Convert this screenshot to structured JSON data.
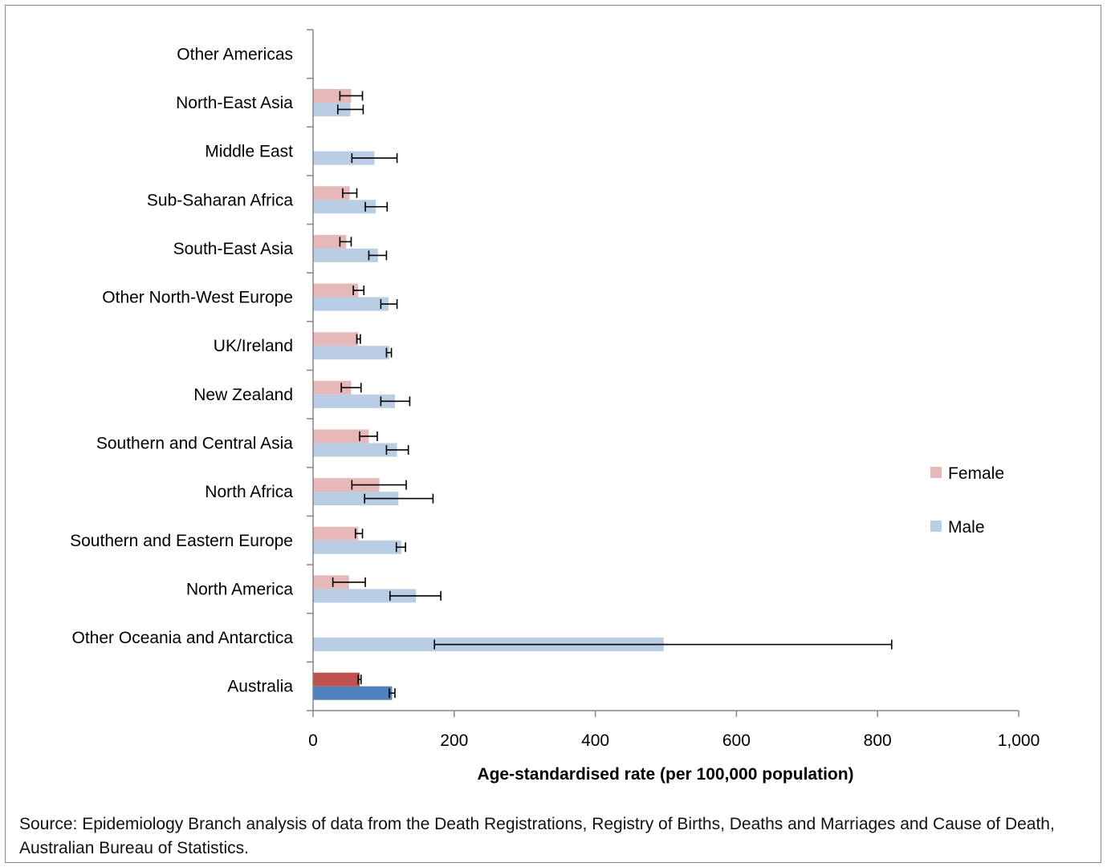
{
  "chart_data": {
    "type": "bar",
    "orientation": "horizontal",
    "xlabel": "Age-standardised rate (per 100,000 population)",
    "xlim": [
      0,
      1000
    ],
    "xticks": [
      0,
      200,
      400,
      600,
      800,
      1000
    ],
    "xtick_labels": [
      "0",
      "200",
      "400",
      "600",
      "800",
      "1,000"
    ],
    "grid": false,
    "legend_position": "right",
    "categories": [
      "Australia",
      "Other Oceania and Antarctica",
      "North America",
      "Southern and Eastern Europe",
      "North Africa",
      "Southern and Central Asia",
      "New Zealand",
      "UK/Ireland",
      "Other North-West Europe",
      "South-East Asia",
      "Sub-Saharan Africa",
      "Middle East",
      "North-East Asia",
      "Other Americas"
    ],
    "series": [
      {
        "name": "Female",
        "color": "#e6b9b8",
        "highlight_color": "#c0504d",
        "values": [
          66,
          0,
          51,
          64,
          94,
          79,
          54,
          64,
          64,
          47,
          52,
          0,
          54,
          0
        ],
        "error_low": [
          64,
          0,
          28,
          60,
          55,
          66,
          40,
          62,
          57,
          38,
          42,
          0,
          38,
          0
        ],
        "error_high": [
          68,
          0,
          74,
          70,
          132,
          91,
          68,
          67,
          72,
          54,
          62,
          0,
          70,
          0
        ]
      },
      {
        "name": "Male",
        "color": "#b9cde5",
        "highlight_color": "#4f81bd",
        "values": [
          112,
          497,
          146,
          125,
          121,
          119,
          116,
          108,
          107,
          92,
          89,
          87,
          53,
          0
        ],
        "error_low": [
          108,
          172,
          109,
          118,
          73,
          104,
          96,
          104,
          96,
          79,
          74,
          55,
          35,
          0
        ],
        "error_high": [
          116,
          820,
          181,
          131,
          170,
          135,
          137,
          111,
          119,
          104,
          105,
          119,
          71,
          0
        ]
      }
    ],
    "highlighted_category": "Australia"
  },
  "source_note": "Source: Epidemiology Branch analysis of data from the Death Registrations, Registry of Births, Deaths and Marriages and Cause of Death, Australian Bureau of Statistics."
}
